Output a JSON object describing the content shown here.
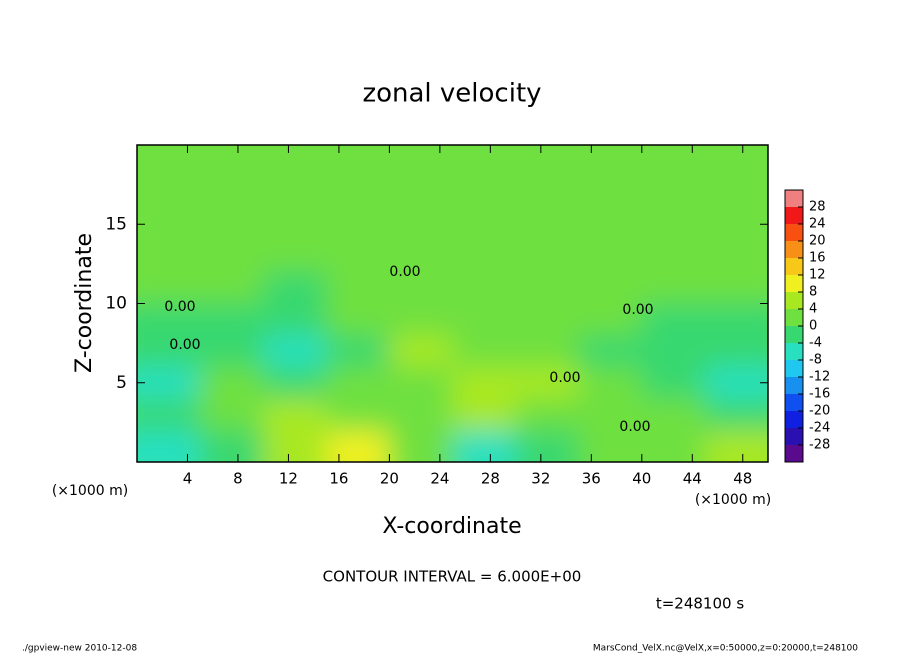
{
  "chart_data": {
    "type": "contour",
    "title": "zonal velocity",
    "xlabel": "X-coordinate",
    "ylabel": "Z-coordinate",
    "x_unit": "(×1000 m)",
    "y_unit": "(×1000 m)",
    "xlim": [
      0,
      50
    ],
    "ylim": [
      0,
      20
    ],
    "xticks": [
      4,
      8,
      12,
      16,
      20,
      24,
      28,
      32,
      36,
      40,
      44,
      48
    ],
    "yticks": [
      5,
      10,
      15
    ],
    "x": [
      2.5,
      7.5,
      12.5,
      17.5,
      22.5,
      27.5,
      32.5,
      37.5,
      42.5,
      47.5
    ],
    "y": [
      19,
      17,
      15,
      13,
      11,
      9,
      7,
      5,
      3,
      1
    ],
    "z": [
      [
        0,
        0,
        0,
        1,
        1,
        1,
        1,
        1,
        1,
        1
      ],
      [
        0,
        0,
        0,
        1,
        1,
        1,
        1,
        1,
        1,
        1
      ],
      [
        0,
        0,
        0,
        1,
        1,
        1,
        1,
        1,
        1,
        1
      ],
      [
        0,
        0,
        0,
        0,
        1,
        1,
        1,
        1,
        1,
        1
      ],
      [
        0,
        0,
        -1,
        0,
        2,
        1,
        1,
        1,
        1,
        0
      ],
      [
        -1,
        -1,
        -1,
        0,
        3,
        2,
        1,
        0,
        -1,
        -1
      ],
      [
        -2,
        -2,
        -5,
        -2,
        6,
        3,
        2,
        -1,
        -1,
        -3
      ],
      [
        -5,
        0,
        -4,
        0,
        3,
        5,
        6,
        0,
        -1,
        -6
      ],
      [
        -1,
        3,
        5,
        3,
        2,
        7,
        3,
        1,
        0,
        -2
      ],
      [
        -6,
        -3,
        6,
        8,
        0,
        -6,
        -2,
        1,
        0,
        6
      ]
    ],
    "levels": [
      -32,
      -28,
      -24,
      -20,
      -16,
      -12,
      -8,
      -4,
      0,
      4,
      8,
      12,
      16,
      20,
      24,
      28,
      32
    ],
    "level_colors": [
      "#5a0a8c",
      "#2a10b0",
      "#1020e0",
      "#1050f0",
      "#1890f0",
      "#20c8f0",
      "#28e0c0",
      "#38d870",
      "#6ee040",
      "#a8e820",
      "#f0f020",
      "#f8c818",
      "#f89018",
      "#f85010",
      "#f01818",
      "#f08080"
    ],
    "colorbar_ticks": [
      -28,
      -24,
      -20,
      -16,
      -12,
      -8,
      -4,
      0,
      4,
      8,
      12,
      16,
      20,
      24,
      28
    ],
    "contour_label": "0.00",
    "contour_interval_text": "CONTOUR INTERVAL = 6.000E+00",
    "time_text": "t=248100 s",
    "footer_left": "./gpview-new  2010-12-08",
    "footer_right": "MarsCond_VelX.nc@VelX,x=0:50000,z=0:20000,t=248100"
  }
}
